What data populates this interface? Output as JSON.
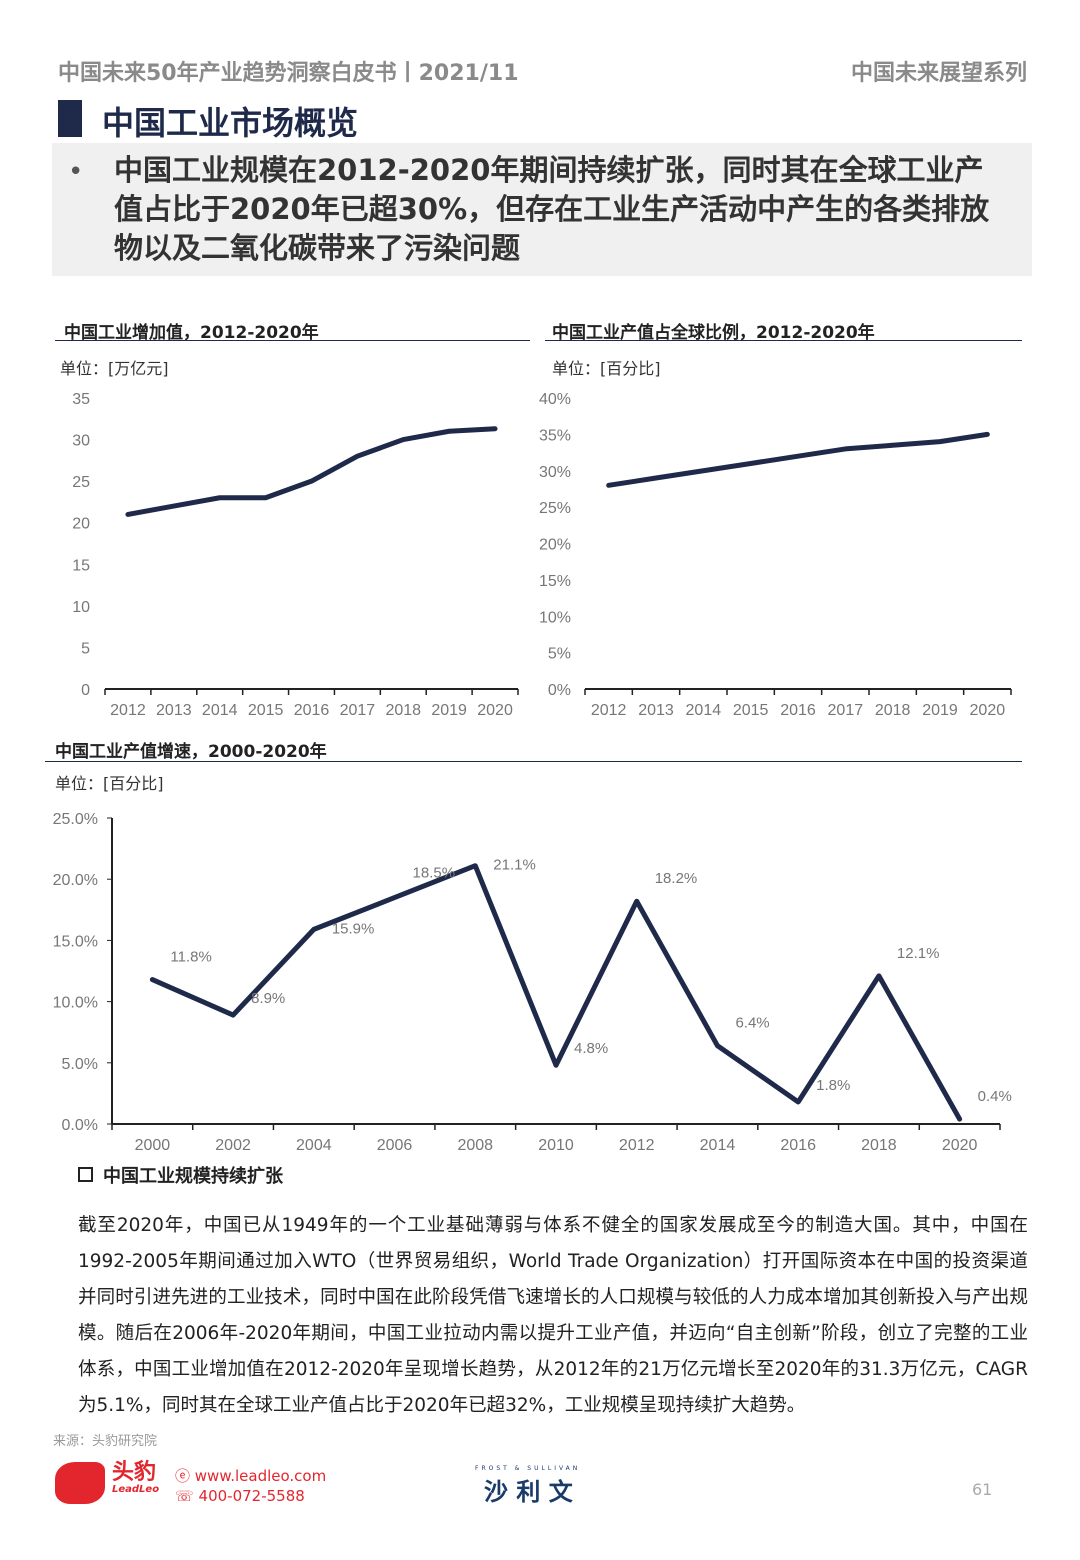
{
  "header": {
    "left": "中国未来50年产业趋势洞察白皮书丨2021/11",
    "right": "中国未来展望系列"
  },
  "page_title": "中国工业市场概览",
  "summary": "中国工业规模在2012-2020年期间持续扩张，同时其在全球工业产值占比于2020年已超30%，但存在工业生产活动中产生的各类排放物以及二氧化碳带来了污染问题",
  "chart_data": [
    {
      "type": "line",
      "title": "中国工业增加值，2012-2020年",
      "unit": "单位：[万亿元]",
      "categories": [
        "2012",
        "2013",
        "2014",
        "2015",
        "2016",
        "2017",
        "2018",
        "2019",
        "2020"
      ],
      "values": [
        21.0,
        22.0,
        23.0,
        23.0,
        25.0,
        28.0,
        30.0,
        31.0,
        31.3
      ],
      "ylim": [
        0,
        35
      ],
      "yticks": [
        "0",
        "5",
        "10",
        "15",
        "20",
        "25",
        "30",
        "35"
      ],
      "color": "#1f2a4a"
    },
    {
      "type": "line",
      "title": "中国工业产值占全球比例，2012-2020年",
      "unit": "单位：[百分比]",
      "categories": [
        "2012",
        "2013",
        "2014",
        "2015",
        "2016",
        "2017",
        "2018",
        "2019",
        "2020"
      ],
      "values": [
        28,
        29,
        30,
        31,
        32,
        33,
        33.5,
        34,
        35
      ],
      "ylim": [
        0,
        40
      ],
      "yticks": [
        "0%",
        "5%",
        "10%",
        "15%",
        "20%",
        "25%",
        "30%",
        "35%",
        "40%"
      ],
      "color": "#1f2a4a"
    },
    {
      "type": "line",
      "title": "中国工业产值增速，2000-2020年",
      "unit": "单位：[百分比]",
      "x": [
        2000,
        2002,
        2004,
        2006,
        2008,
        2010,
        2012,
        2014,
        2016,
        2018,
        2020
      ],
      "xticks": [
        "2000",
        "2002",
        "2004",
        "2006",
        "2008",
        "2010",
        "2012",
        "2014",
        "2016",
        "2018",
        "2020"
      ],
      "values": [
        11.8,
        8.9,
        15.9,
        18.5,
        21.1,
        4.8,
        18.2,
        6.4,
        1.8,
        12.1,
        0.4
      ],
      "labels": [
        "11.8%",
        "8.9%",
        "15.9%",
        "18.5%",
        "21.1%",
        "4.8%",
        "18.2%",
        "6.4%",
        "1.8%",
        "12.1%",
        "0.4%"
      ],
      "ylim": [
        0,
        25
      ],
      "yticks": [
        "0.0%",
        "5.0%",
        "10.0%",
        "15.0%",
        "20.0%",
        "25.0%"
      ],
      "color": "#1f2a4a"
    }
  ],
  "section_heading": "中国工业规模持续扩张",
  "body": "截至2020年，中国已从1949年的一个工业基础薄弱与体系不健全的国家发展成至今的制造大国。其中，中国在1992-2005年期间通过加入WTO（世界贸易组织，World Trade Organization）打开国际资本在中国的投资渠道并同时引进先进的工业技术，同时中国在此阶段凭借飞速增长的人口规模与较低的人力成本增加其创新投入与产出规模。随后在2006年-2020年期间，中国工业拉动内需以提升工业产值，并迈向“自主创新”阶段，创立了完整的工业体系，中国工业增加值在2012-2020年呈现增长趋势，从2012年的21万亿元增长至2020年的31.3万亿元，CAGR为5.1%，同时其在全球工业产值占比于2020年已超32%，工业规模呈现持续扩大趋势。",
  "source": "来源：头豹研究院",
  "footer": {
    "logo_text": "头豹 LeadLeo",
    "website": "www.leadleo.com",
    "phone": "400-072-5588",
    "partner_en": "FROST & SULLIVAN",
    "partner_cn": "沙 利 文",
    "page": "61"
  }
}
